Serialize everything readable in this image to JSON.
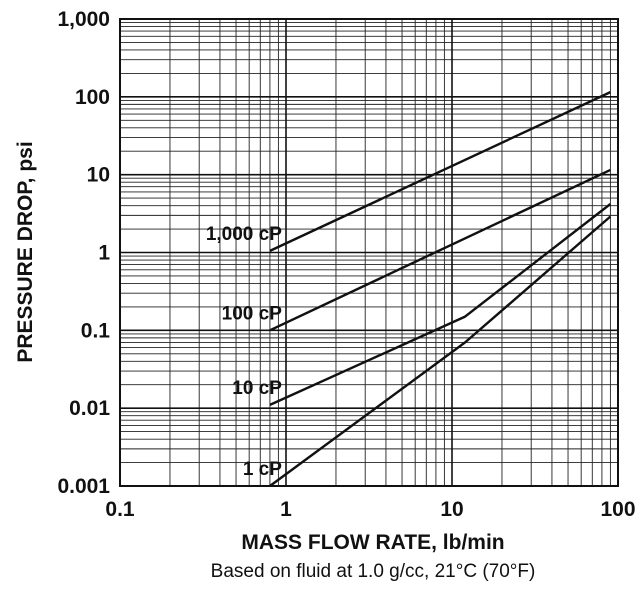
{
  "chart_data": {
    "type": "line",
    "title": "",
    "xlabel": "MASS FLOW RATE, lb/min",
    "ylabel": "PRESSURE DROP, psi",
    "note": "Based on fluid at 1.0 g/cc, 21°C (70°F)",
    "xscale": "log",
    "yscale": "log",
    "xlim": [
      0.1,
      100
    ],
    "ylim": [
      0.001,
      1000
    ],
    "grid": true,
    "x_ticks": [
      {
        "value": 0.1,
        "label": "0.1"
      },
      {
        "value": 1,
        "label": "1"
      },
      {
        "value": 10,
        "label": "10"
      },
      {
        "value": 100,
        "label": "100"
      }
    ],
    "y_ticks": [
      {
        "value": 0.001,
        "label": "0.001"
      },
      {
        "value": 0.01,
        "label": "0.01"
      },
      {
        "value": 0.1,
        "label": "0.1"
      },
      {
        "value": 1,
        "label": "1"
      },
      {
        "value": 10,
        "label": "10"
      },
      {
        "value": 100,
        "label": "100"
      },
      {
        "value": 1000,
        "label": "1,000"
      }
    ],
    "series": [
      {
        "name": "1,000 cP",
        "points": [
          [
            0.8,
            1.05
          ],
          [
            90,
            115
          ]
        ]
      },
      {
        "name": "100 cP",
        "points": [
          [
            0.8,
            0.1
          ],
          [
            90,
            11.5
          ]
        ]
      },
      {
        "name": "10 cP",
        "points": [
          [
            0.8,
            0.011
          ],
          [
            12,
            0.15
          ],
          [
            90,
            4.2
          ]
        ]
      },
      {
        "name": "1 cP",
        "points": [
          [
            0.8,
            0.001
          ],
          [
            12,
            0.07
          ],
          [
            90,
            2.9
          ]
        ]
      }
    ]
  }
}
